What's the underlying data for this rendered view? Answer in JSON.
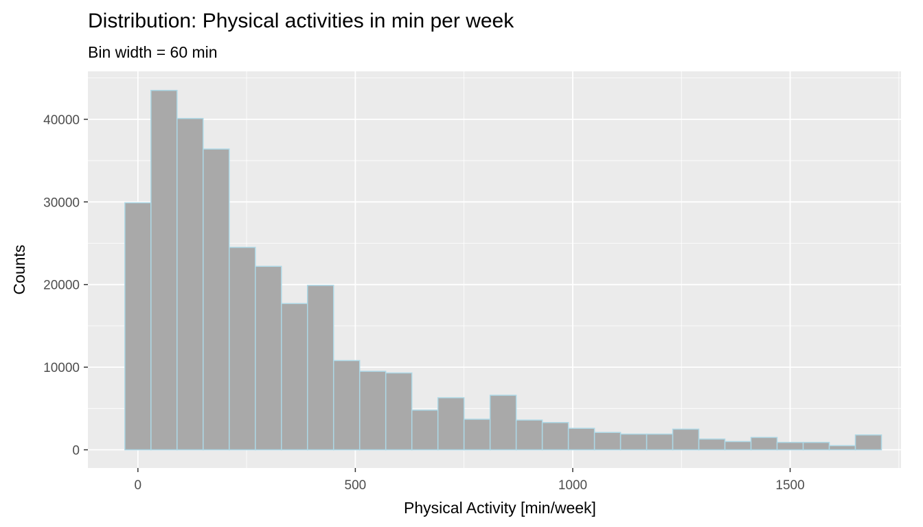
{
  "chart_data": {
    "type": "bar",
    "title": "Distribution: Physical activities in min per week",
    "subtitle": "Bin width = 60 min",
    "xlabel": "Physical Activity [min/week]",
    "ylabel": "Counts",
    "bin_width": 60,
    "bin_centers": [
      0,
      60,
      120,
      180,
      240,
      300,
      360,
      420,
      480,
      540,
      600,
      660,
      720,
      780,
      840,
      900,
      960,
      1020,
      1080,
      1140,
      1200,
      1260,
      1320,
      1380,
      1440,
      1500,
      1560,
      1620,
      1680
    ],
    "values": [
      29900,
      43500,
      40100,
      36400,
      24500,
      22200,
      17700,
      19900,
      10800,
      9500,
      9300,
      4800,
      6300,
      3700,
      6600,
      3600,
      3300,
      2600,
      2100,
      1900,
      1900,
      2500,
      1300,
      1000,
      1500,
      900,
      900,
      500,
      1800
    ],
    "xlim": [
      -115,
      1755
    ],
    "ylim": [
      -2200,
      45800
    ],
    "x_ticks": [
      0,
      500,
      1000,
      1500
    ],
    "x_tick_labels": [
      "0",
      "500",
      "1000",
      "1500"
    ],
    "y_ticks": [
      0,
      10000,
      20000,
      30000,
      40000
    ],
    "y_tick_labels": [
      "0",
      "10000",
      "20000",
      "30000",
      "40000"
    ],
    "grid": true,
    "legend": "none",
    "colors": {
      "panel_background": "#ebebeb",
      "grid_major": "#ffffff",
      "bar_fill": "#a9a9a9",
      "bar_outline": "#add8e6",
      "tick_text": "#4d4d4d",
      "tick_mark": "#333333"
    }
  }
}
